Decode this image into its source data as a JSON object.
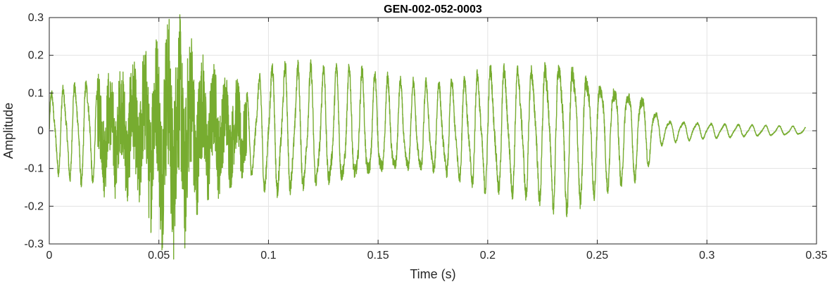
{
  "chart_data": {
    "type": "line",
    "title": "GEN-002-052-0003",
    "xlabel": "Time (s)",
    "ylabel": "Amplitude",
    "xlim": [
      0,
      0.35
    ],
    "ylim": [
      -0.3,
      0.3
    ],
    "xticks": [
      0,
      0.05,
      0.1,
      0.15,
      0.2,
      0.25,
      0.3,
      0.35
    ],
    "xtick_labels": [
      "0",
      "0.05",
      "0.1",
      "0.15",
      "0.2",
      "0.25",
      "0.3",
      "0.35"
    ],
    "yticks": [
      -0.3,
      -0.2,
      -0.1,
      0,
      0.1,
      0.2,
      0.3
    ],
    "ytick_labels": [
      "-0.3",
      "-0.2",
      "-0.1",
      "0",
      "0.1",
      "0.2",
      "0.3"
    ],
    "grid": true,
    "line_color": "#77AC30",
    "series": [
      {
        "name": "",
        "x": [
          0,
          0.0175,
          0.022,
          0.03,
          0.04,
          0.045,
          0.05,
          0.055,
          0.06,
          0.065,
          0.07,
          0.08,
          0.09,
          0.1,
          0.12,
          0.14,
          0.16,
          0.18,
          0.2,
          0.22,
          0.235,
          0.25,
          0.26,
          0.27,
          0.275,
          0.28,
          0.3,
          0.32,
          0.345
        ],
        "envelope": [
          0.1,
          0.14,
          0.12,
          0.13,
          0.16,
          0.19,
          0.22,
          0.25,
          0.24,
          0.21,
          0.16,
          0.12,
          0.1,
          0.17,
          0.16,
          0.15,
          0.12,
          0.12,
          0.16,
          0.17,
          0.2,
          0.15,
          0.13,
          0.11,
          0.07,
          0.03,
          0.02,
          0.015,
          0.01
        ]
      }
    ]
  }
}
